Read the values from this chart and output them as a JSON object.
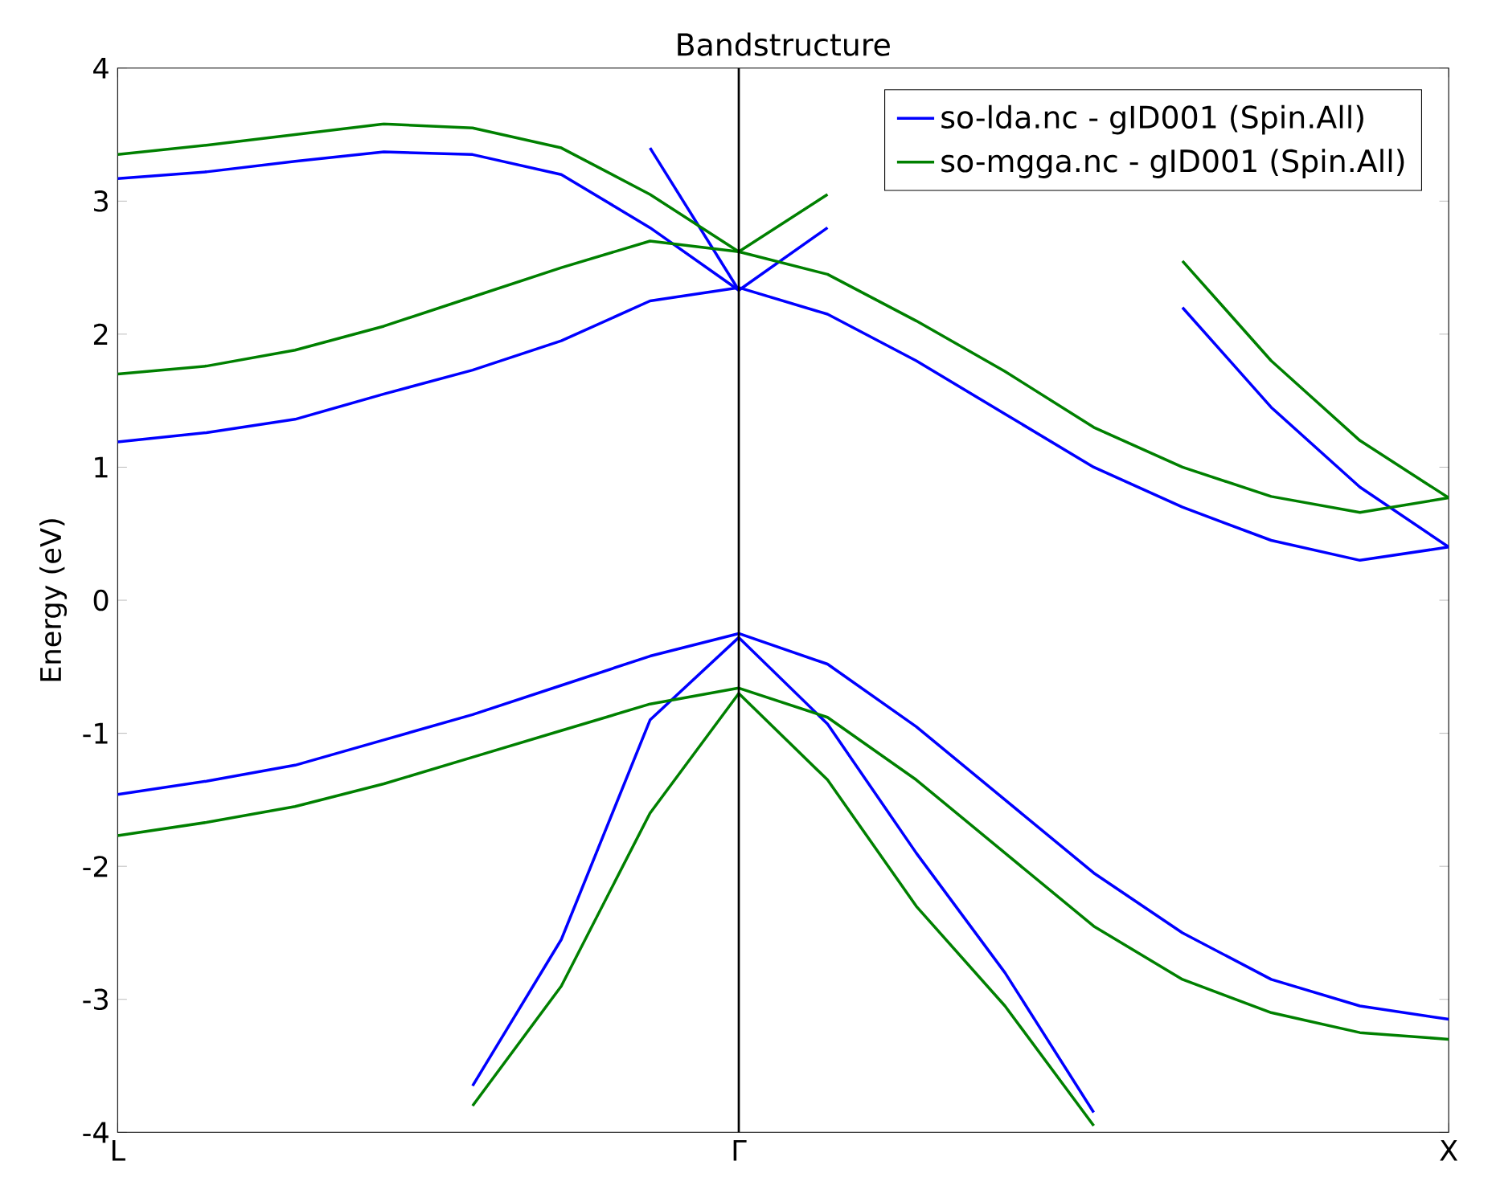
{
  "chart_data": {
    "type": "line",
    "title": "Bandstructure",
    "ylabel": "Energy (eV)",
    "categories": [
      "L",
      null,
      null,
      null,
      null,
      null,
      null,
      "Γ",
      null,
      null,
      null,
      null,
      null,
      null,
      null,
      "X"
    ],
    "ylim": [
      -4,
      4
    ],
    "yticks": [
      -4,
      -3,
      -2,
      -1,
      0,
      1,
      2,
      3,
      4
    ],
    "legend": "top right",
    "ref_lines": [
      {
        "axis": "x",
        "value": "Γ",
        "label": null,
        "color": "#000000"
      }
    ],
    "series": [
      {
        "name": "so-lda.nc - gID001 (Spin.All)",
        "color": "#0000ff",
        "values": [
          -1.46,
          -1.36,
          -1.24,
          -1.05,
          -0.86,
          -0.64,
          -0.42,
          -0.25,
          -0.48,
          -0.95,
          -1.5,
          -2.05,
          -2.5,
          -2.85,
          -3.05,
          -3.15
        ]
      },
      {
        "color": "#0000ff",
        "values": [
          null,
          null,
          null,
          null,
          -3.65,
          -2.55,
          -0.9,
          -0.28,
          -0.93,
          -1.9,
          -2.8,
          -3.85,
          null,
          null,
          null,
          null
        ]
      },
      {
        "color": "#0000ff",
        "values": [
          1.19,
          1.26,
          1.36,
          1.55,
          1.73,
          1.95,
          2.25,
          2.35,
          2.15,
          1.8,
          1.4,
          1.0,
          0.7,
          0.45,
          0.3,
          0.4
        ]
      },
      {
        "color": "#0000ff",
        "values": [
          3.17,
          3.22,
          3.3,
          3.37,
          3.35,
          3.2,
          2.8,
          2.33,
          2.8,
          null,
          null,
          null,
          null,
          null,
          null,
          null
        ]
      },
      {
        "color": "#0000ff",
        "values": [
          null,
          null,
          null,
          null,
          null,
          null,
          3.4,
          2.33,
          null,
          null,
          null,
          null,
          null,
          null,
          null,
          null
        ]
      },
      {
        "color": "#0000ff",
        "values": [
          null,
          null,
          null,
          null,
          null,
          null,
          null,
          null,
          null,
          null,
          null,
          null,
          2.2,
          1.45,
          0.85,
          0.4
        ]
      },
      {
        "name": "so-mgga.nc - gID001 (Spin.All)",
        "color": "#008000",
        "values": [
          -1.77,
          -1.67,
          -1.55,
          -1.38,
          -1.18,
          -0.98,
          -0.78,
          -0.66,
          -0.88,
          -1.35,
          -1.9,
          -2.45,
          -2.85,
          -3.1,
          -3.25,
          -3.3
        ]
      },
      {
        "color": "#008000",
        "values": [
          null,
          null,
          null,
          null,
          -3.8,
          -2.9,
          -1.6,
          -0.7,
          -1.35,
          -2.3,
          -3.05,
          -3.95,
          null,
          null,
          null,
          null
        ]
      },
      {
        "color": "#008000",
        "values": [
          1.7,
          1.76,
          1.88,
          2.06,
          2.28,
          2.5,
          2.7,
          2.62,
          2.45,
          2.1,
          1.72,
          1.3,
          1.0,
          0.78,
          0.66,
          0.77
        ]
      },
      {
        "color": "#008000",
        "values": [
          3.35,
          3.42,
          3.5,
          3.58,
          3.55,
          3.4,
          3.05,
          2.62,
          3.05,
          null,
          null,
          null,
          null,
          null,
          null,
          null
        ]
      },
      {
        "color": "#008000",
        "values": [
          null,
          null,
          null,
          null,
          null,
          null,
          null,
          null,
          null,
          null,
          null,
          null,
          2.55,
          1.8,
          1.2,
          0.77
        ]
      }
    ]
  }
}
